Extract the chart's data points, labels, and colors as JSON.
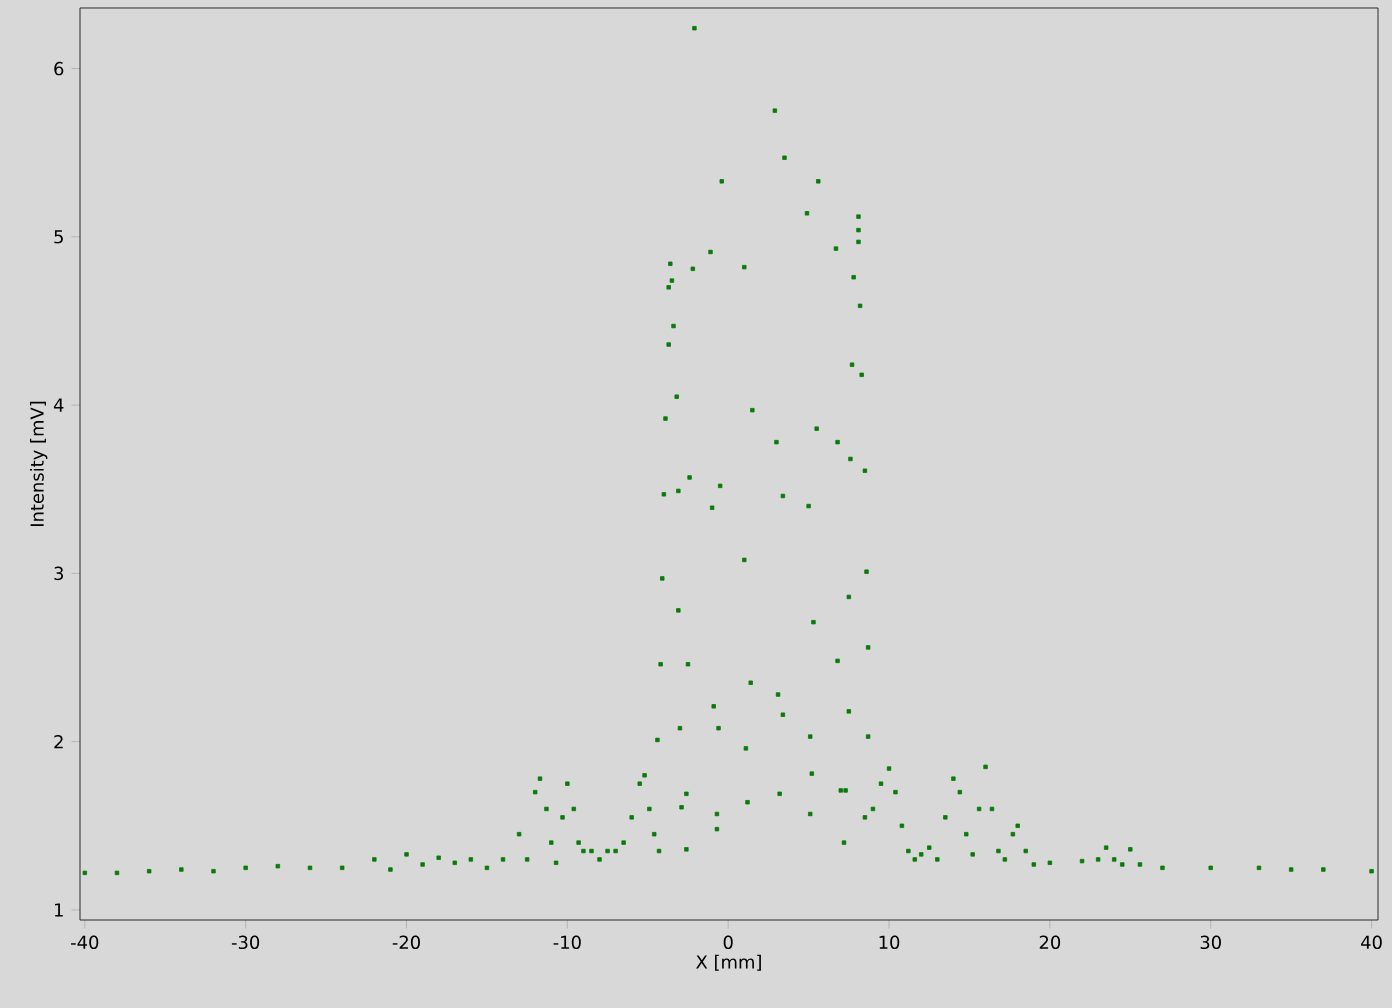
{
  "chart_data": {
    "type": "scatter",
    "xlabel": "X [mm]",
    "ylabel": "Intensity [mV]",
    "xlim": [
      -40.3,
      40.4
    ],
    "ylim": [
      0.94,
      6.36
    ],
    "xticks": [
      -40,
      -30,
      -20,
      -10,
      0,
      10,
      20,
      30,
      40
    ],
    "yticks": [
      1,
      2,
      3,
      4,
      5,
      6
    ],
    "grid": false,
    "marker": "square",
    "series": [
      {
        "color": "#0a7a0a",
        "x": [
          -40,
          -38,
          -36,
          -34,
          -32,
          -30,
          -28,
          -26,
          -24,
          -22,
          -21,
          -20,
          -19,
          -18,
          -17,
          -16,
          -15,
          -14,
          -13,
          -12.5,
          -12,
          -11.7,
          -11.3,
          -11,
          -10.7,
          -10.3,
          -10,
          -9.6,
          -9.3,
          -9,
          -8.5,
          -8,
          -7.5,
          -7,
          -6.5,
          -6,
          -5.5,
          -5.2,
          -4.9,
          -4.6,
          -4.3,
          8.5,
          9,
          9.5,
          10,
          10.4,
          10.8,
          11.2,
          11.6,
          12,
          12.5,
          13,
          13.5,
          14,
          14.4,
          14.8,
          15.2,
          15.6,
          16,
          16.4,
          16.8,
          17.2,
          17.7,
          18,
          18.5,
          19,
          20,
          22,
          23,
          23.5,
          24,
          24.5,
          25,
          25.6,
          27,
          30,
          33,
          35,
          37,
          40,
          -2.1,
          2.9,
          3.5,
          -0.4,
          5.6,
          4.9,
          8.1,
          8.1,
          8.1,
          6.7,
          -1.1,
          -3.6,
          -2.2,
          1.0,
          -3.5,
          -3.7,
          7.8,
          8.2,
          -3.4,
          -3.7,
          7.7,
          8.3,
          -3.2,
          -3.9,
          1.5,
          5.5,
          3.0,
          6.8,
          7.6,
          8.5,
          -2.4,
          -0.5,
          -4.0,
          -3.1,
          3.4,
          -1.0,
          5.0,
          1.0,
          -4.1,
          8.6,
          7.5,
          -3.1,
          5.3,
          -4.2,
          -2.5,
          6.8,
          8.7,
          1.4,
          3.1,
          3.4,
          -0.9,
          7.5,
          -3.0,
          -0.6,
          -4.4,
          1.1,
          5.1,
          8.7,
          5.2,
          -2.6,
          3.2,
          -2.9,
          1.2,
          -0.7,
          -0.7,
          5.1,
          -2.6,
          7.2,
          7.0,
          7.3
        ],
        "values": [
          1.22,
          1.22,
          1.23,
          1.24,
          1.23,
          1.25,
          1.26,
          1.25,
          1.25,
          1.3,
          1.24,
          1.33,
          1.27,
          1.31,
          1.28,
          1.3,
          1.25,
          1.3,
          1.45,
          1.3,
          1.7,
          1.78,
          1.6,
          1.4,
          1.28,
          1.55,
          1.75,
          1.6,
          1.4,
          1.35,
          1.35,
          1.3,
          1.35,
          1.35,
          1.4,
          1.55,
          1.75,
          1.8,
          1.6,
          1.45,
          1.35,
          1.55,
          1.6,
          1.75,
          1.84,
          1.7,
          1.5,
          1.35,
          1.3,
          1.33,
          1.37,
          1.3,
          1.55,
          1.78,
          1.7,
          1.45,
          1.33,
          1.6,
          1.85,
          1.6,
          1.35,
          1.3,
          1.45,
          1.5,
          1.35,
          1.27,
          1.28,
          1.29,
          1.3,
          1.37,
          1.3,
          1.27,
          1.36,
          1.27,
          1.25,
          1.25,
          1.25,
          1.24,
          1.24,
          1.23,
          6.24,
          5.75,
          5.47,
          5.33,
          5.33,
          5.14,
          5.12,
          5.04,
          4.97,
          4.93,
          4.91,
          4.84,
          4.81,
          4.82,
          4.74,
          4.7,
          4.76,
          4.59,
          4.47,
          4.36,
          4.24,
          4.18,
          4.05,
          3.92,
          3.97,
          3.86,
          3.78,
          3.78,
          3.68,
          3.61,
          3.57,
          3.52,
          3.47,
          3.49,
          3.46,
          3.39,
          3.4,
          3.08,
          2.97,
          3.01,
          2.86,
          2.78,
          2.71,
          2.46,
          2.46,
          2.48,
          2.56,
          2.35,
          2.28,
          2.16,
          2.21,
          2.18,
          2.08,
          2.08,
          2.01,
          1.96,
          2.03,
          2.03,
          1.81,
          1.69,
          1.69,
          1.61,
          1.64,
          1.57,
          1.48,
          1.57,
          1.36,
          1.4,
          1.71,
          1.71
        ]
      }
    ]
  }
}
